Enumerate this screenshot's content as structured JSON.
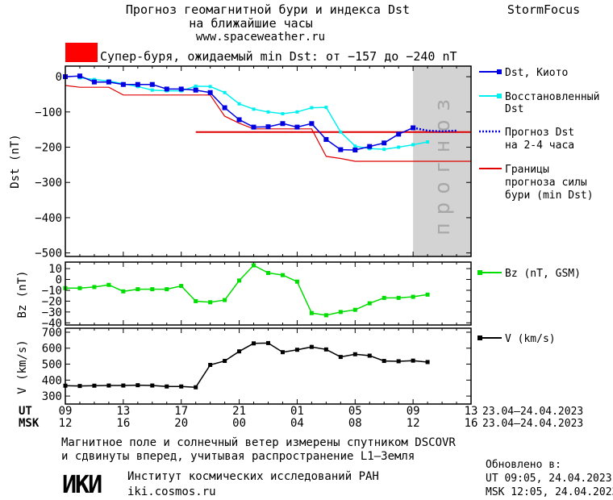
{
  "header": {
    "title_line1": "Прогноз геомагнитной бури и индекса Dst",
    "title_line2": "на ближайшие часы",
    "url": "www.spaceweather.ru",
    "brand": "StormFocus",
    "storm_text": "Супер-буря, ожидаемый min Dst: от −157 до −240 nT",
    "storm_color": "#ff0000"
  },
  "colors": {
    "dst_kyoto": "#0000e0",
    "dst_restored": "#00f0f0",
    "dst_forecast": "#0000e0",
    "bounds": "#e00000",
    "bz": "#00dd00",
    "v": "#000000",
    "forecast_zone": "#d3d3d3"
  },
  "forecast_zone_label": "прогноз",
  "legend": {
    "dst_kyoto": "Dst, Киото",
    "restored_1": "Восстановленный",
    "restored_2": "Dst",
    "forecast_1": "Прогноз Dst",
    "forecast_2": "на 2-4 часа",
    "bounds_1": "Границы",
    "bounds_2": "прогноза силы",
    "bounds_3": "бури (min Dst)",
    "bz": "Bz (nT, GSM)",
    "v": "V (km/s)"
  },
  "time_axis": {
    "ut_label": "UT",
    "msk_label": "MSK",
    "ut_ticks": [
      "09",
      "13",
      "17",
      "21",
      "01",
      "05",
      "09",
      "13"
    ],
    "msk_ticks": [
      "12",
      "16",
      "20",
      "00",
      "04",
      "08",
      "12",
      "16"
    ],
    "date_range": "23.04–24.04.2023"
  },
  "footer": {
    "note_line1": "Магнитное поле и солнечный ветер измерены спутником DSCOVR",
    "note_line2": "и сдвинуты вперед, учитывая распространение L1–Земля",
    "logo_text": "ИКИ",
    "institute": "Институт космических исследований РАН",
    "site": "iki.cosmos.ru",
    "updated_label": "Обновлено в:",
    "updated_ut": "UT  09:05, 24.04.2023",
    "updated_msk": "MSK 12:05, 24.04.2023"
  },
  "chart_data": [
    {
      "type": "line",
      "panel": "dst",
      "ylabel": "Dst (nT)",
      "xlim": [
        9,
        37
      ],
      "ylim": [
        -510,
        30
      ],
      "yticks": [
        0,
        -100,
        -200,
        -300,
        -400,
        -500
      ],
      "ytick_labels": [
        "0",
        "−100",
        "−200",
        "−300",
        "−400",
        "−500"
      ],
      "forecast_zone": [
        33,
        37
      ],
      "series": [
        {
          "name": "Dst, Киото",
          "x": [
            9,
            10,
            11,
            12,
            13,
            14,
            15,
            16,
            17,
            18,
            19,
            20,
            21,
            22,
            23,
            24,
            25,
            26,
            27,
            28,
            29,
            30,
            31,
            32,
            33
          ],
          "values": [
            0,
            2,
            -15,
            -15,
            -22,
            -22,
            -22,
            -35,
            -35,
            -38,
            -45,
            -88,
            -122,
            -143,
            -142,
            -133,
            -143,
            -133,
            -178,
            -207,
            -208,
            -198,
            -188,
            -163,
            -145
          ]
        },
        {
          "name": "Восстановленный Dst",
          "x": [
            10,
            11,
            12,
            13,
            14,
            15,
            16,
            17,
            18,
            19,
            20,
            21,
            22,
            23,
            24,
            25,
            26,
            27,
            28,
            29,
            30,
            31,
            32,
            33,
            34
          ],
          "values": [
            -3,
            -8,
            -12,
            -20,
            -28,
            -38,
            -40,
            -40,
            -27,
            -28,
            -45,
            -77,
            -92,
            -100,
            -105,
            -100,
            -88,
            -87,
            -157,
            -197,
            -204,
            -206,
            -200,
            -193,
            -185
          ]
        },
        {
          "name": "Прогноз Dst на 2-4 часа",
          "x": [
            33,
            34,
            35,
            36
          ],
          "values": [
            -145,
            -153,
            -155,
            -153
          ]
        },
        {
          "name": "Границы прогноза силы бури (min Dst)",
          "x": [
            9,
            10,
            11,
            12,
            13,
            14,
            15,
            16,
            17,
            18,
            19,
            20,
            21,
            22,
            23,
            24,
            25,
            26,
            27,
            28,
            29,
            30,
            31,
            32,
            33,
            34,
            35,
            36,
            37
          ],
          "values": [
            -25,
            -30,
            -30,
            -30,
            -52,
            -52,
            -52,
            -52,
            -52,
            -52,
            -52,
            -112,
            -132,
            -148,
            -148,
            -148,
            -148,
            -148,
            -226,
            -232,
            -240,
            -240,
            -240,
            -240,
            -240,
            -240,
            -240,
            -240,
            -240
          ]
        },
        {
          "name": "Границы прогноза силы бури (min Dst)",
          "x": [
            18,
            37
          ],
          "values": [
            -157,
            -157
          ]
        }
      ]
    },
    {
      "type": "line",
      "panel": "bz",
      "ylabel": "Bz (nT)",
      "xlim": [
        9,
        37
      ],
      "ylim": [
        -42,
        16
      ],
      "yticks": [
        10,
        0,
        -10,
        -20,
        -30,
        -40
      ],
      "ytick_labels": [
        "10",
        "0",
        "−10",
        "−20",
        "−30",
        "−40"
      ],
      "series": [
        {
          "name": "Bz (nT, GSM)",
          "x": [
            9,
            10,
            11,
            12,
            13,
            14,
            15,
            16,
            17,
            18,
            19,
            20,
            21,
            22,
            23,
            24,
            25,
            26,
            27,
            28,
            29,
            30,
            31,
            32,
            33,
            34
          ],
          "values": [
            -8,
            -8,
            -7,
            -5,
            -11,
            -9,
            -9,
            -9,
            -6,
            -20,
            -21,
            -19,
            -1,
            13,
            6,
            4,
            -2,
            -31,
            -33,
            -30,
            -28,
            -22,
            -17,
            -17,
            -16,
            -14
          ]
        }
      ]
    },
    {
      "type": "line",
      "panel": "v",
      "ylabel": "V (km/s)",
      "xlim": [
        9,
        37
      ],
      "ylim": [
        250,
        725
      ],
      "yticks": [
        300,
        400,
        500,
        600,
        700
      ],
      "ytick_labels": [
        "300",
        "400",
        "500",
        "600",
        "700"
      ],
      "series": [
        {
          "name": "V (km/s)",
          "x": [
            9,
            10,
            11,
            12,
            13,
            14,
            15,
            16,
            17,
            18,
            19,
            20,
            21,
            22,
            23,
            24,
            25,
            26,
            27,
            28,
            29,
            30,
            31,
            32,
            33,
            34
          ],
          "values": [
            365,
            363,
            365,
            366,
            366,
            368,
            366,
            360,
            360,
            355,
            495,
            520,
            580,
            630,
            632,
            575,
            590,
            608,
            592,
            545,
            562,
            553,
            520,
            518,
            522,
            513
          ]
        }
      ]
    }
  ]
}
